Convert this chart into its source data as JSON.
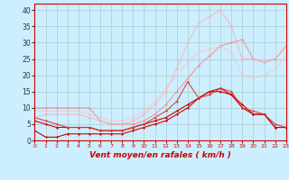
{
  "title": "",
  "xlabel": "Vent moyen/en rafales ( km/h )",
  "bg_color": "#cceeff",
  "grid_color": "#aacccc",
  "x_ticks": [
    0,
    1,
    2,
    3,
    4,
    5,
    6,
    7,
    8,
    9,
    10,
    11,
    12,
    13,
    14,
    15,
    16,
    17,
    18,
    19,
    20,
    21,
    22,
    23
  ],
  "y_ticks": [
    0,
    5,
    10,
    15,
    20,
    25,
    30,
    35,
    40
  ],
  "xlim": [
    0,
    23
  ],
  "ylim": [
    0,
    42
  ],
  "series": [
    {
      "x": [
        0,
        1,
        2,
        3,
        4,
        5,
        6,
        7,
        8,
        9,
        10,
        11,
        12,
        13,
        14,
        15,
        16,
        17,
        18,
        19,
        20,
        21,
        22,
        23
      ],
      "y": [
        3,
        1,
        1,
        2,
        2,
        2,
        2,
        2,
        2,
        3,
        4,
        5,
        6,
        8,
        10,
        13,
        15,
        15,
        14,
        11,
        8,
        8,
        4,
        4
      ],
      "color": "#cc0000",
      "marker": "D",
      "markersize": 1.5,
      "linewidth": 0.8,
      "alpha": 1.0
    },
    {
      "x": [
        0,
        1,
        2,
        3,
        4,
        5,
        6,
        7,
        8,
        9,
        10,
        11,
        12,
        13,
        14,
        15,
        16,
        17,
        18,
        19,
        20,
        21,
        22,
        23
      ],
      "y": [
        6,
        5,
        4,
        4,
        4,
        4,
        3,
        3,
        3,
        4,
        5,
        6,
        7,
        9,
        11,
        13,
        15,
        16,
        14,
        10,
        8,
        8,
        4,
        4
      ],
      "color": "#cc0000",
      "marker": "D",
      "markersize": 1.5,
      "linewidth": 0.8,
      "alpha": 1.0
    },
    {
      "x": [
        0,
        1,
        2,
        3,
        4,
        5,
        6,
        7,
        8,
        9,
        10,
        11,
        12,
        13,
        14,
        15,
        16,
        17,
        18,
        19,
        20,
        21,
        22,
        23
      ],
      "y": [
        7,
        6,
        5,
        4,
        4,
        4,
        3,
        3,
        3,
        4,
        5,
        7,
        9,
        12,
        18,
        13,
        14,
        16,
        15,
        10,
        9,
        8,
        5,
        4
      ],
      "color": "#dd3333",
      "marker": "D",
      "markersize": 1.5,
      "linewidth": 0.8,
      "alpha": 0.9
    },
    {
      "x": [
        0,
        1,
        2,
        3,
        4,
        5,
        6,
        7,
        8,
        9,
        10,
        11,
        12,
        13,
        14,
        15,
        16,
        17,
        18,
        19,
        20,
        21,
        22,
        23
      ],
      "y": [
        10,
        10,
        10,
        10,
        10,
        10,
        6,
        5,
        5,
        5,
        6,
        8,
        11,
        15,
        19,
        23,
        26,
        29,
        30,
        31,
        25,
        24,
        25,
        29
      ],
      "color": "#ff8888",
      "marker": "D",
      "markersize": 1.5,
      "linewidth": 0.8,
      "alpha": 0.85
    },
    {
      "x": [
        0,
        1,
        2,
        3,
        4,
        5,
        6,
        7,
        8,
        9,
        10,
        11,
        12,
        13,
        14,
        15,
        16,
        17,
        18,
        19,
        20,
        21,
        22,
        23
      ],
      "y": [
        7,
        8,
        8,
        8,
        8,
        7,
        6,
        5,
        5,
        6,
        8,
        11,
        15,
        22,
        30,
        36,
        38,
        40,
        35,
        25,
        25,
        24,
        25,
        29
      ],
      "color": "#ffaaaa",
      "marker": "D",
      "markersize": 1.5,
      "linewidth": 0.8,
      "alpha": 0.7
    },
    {
      "x": [
        0,
        1,
        2,
        3,
        4,
        5,
        6,
        7,
        8,
        9,
        10,
        11,
        12,
        13,
        14,
        15,
        16,
        17,
        18,
        19,
        20,
        21,
        22,
        23
      ],
      "y": [
        9,
        9,
        9,
        9,
        9,
        8,
        7,
        6,
        6,
        7,
        9,
        12,
        16,
        20,
        24,
        27,
        28,
        29,
        27,
        20,
        19,
        20,
        22,
        26
      ],
      "color": "#ffbbbb",
      "marker": "D",
      "markersize": 1.5,
      "linewidth": 0.8,
      "alpha": 0.6
    }
  ]
}
